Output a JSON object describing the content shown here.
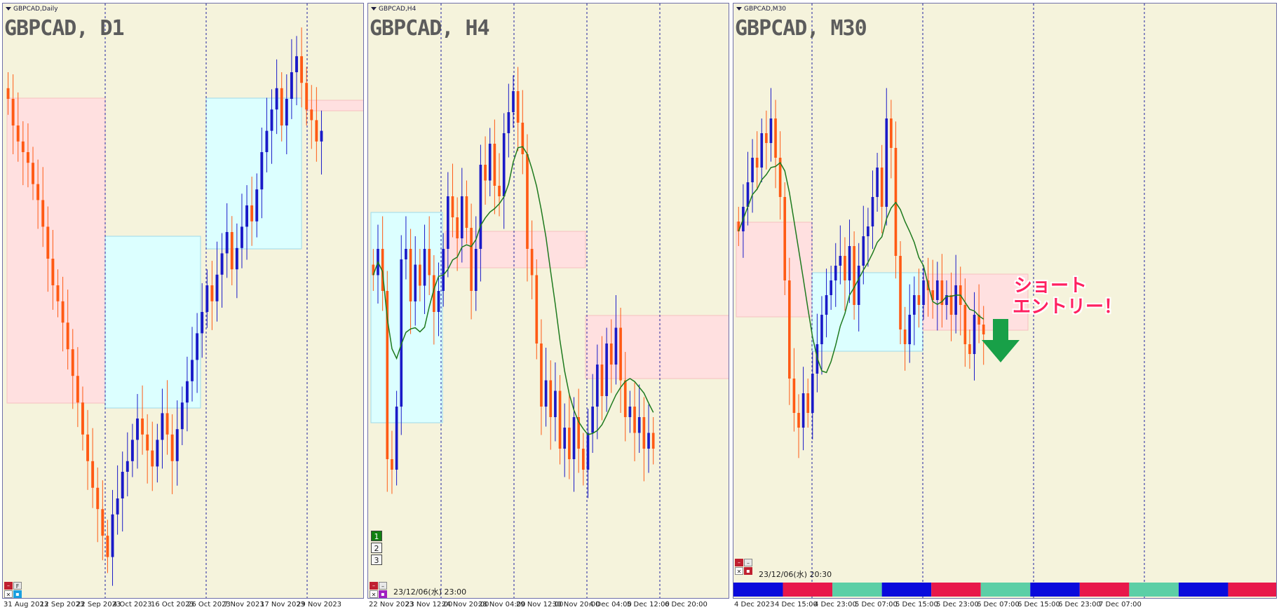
{
  "colors": {
    "bull": "#1a1ac8",
    "bear": "#ff5a14",
    "ma": "#1e7a1e",
    "zone_pink": "#ffe0e0",
    "zone_blue": "#dcffff",
    "bg": "#f5f3dc",
    "separator": "#2020a0",
    "bar_blue": "#0a0adc",
    "bar_red": "#e8184a",
    "bar_teal": "#5ccfa6"
  },
  "icons": [
    "collapse-triangle-icon",
    "close-x-icon",
    "minimize-icon",
    "down-arrow-icon"
  ],
  "panels": [
    {
      "window_label": "GBPCAD,Daily",
      "title": "GBPCAD, D1",
      "dates": [
        "31 Aug 2023",
        "12 Sep 2023",
        "22 Sep 2023",
        "4 Oct 2023",
        "16 Oct 2023",
        "26 Oct 2023",
        "7 Nov 2023",
        "17 Nov 2023",
        "29 Nov 2023"
      ],
      "controls": [
        {
          "symbol": "–",
          "color": "#c02030"
        },
        {
          "symbol": "F",
          "color": "#e8e8e8"
        },
        {
          "symbol": "✕",
          "color": "#ffffff"
        },
        {
          "symbol": "▪",
          "color": "#1aa0e0"
        }
      ]
    },
    {
      "window_label": "GBPCAD,H4",
      "title": "GBPCAD, H4",
      "dates": [
        "22 Nov 2023",
        "23 Nov 12:00",
        "24 Nov 20:00",
        "28 Nov 04:00",
        "29 Nov 12:00",
        "30 Nov 20:00",
        "4 Dec 04:00",
        "5 Dec 12:00",
        "6 Dec 20:00"
      ],
      "timestamp": "23/12/06(水) 23:00",
      "buttons": [
        "1",
        "2",
        "3"
      ],
      "controls": [
        {
          "symbol": "–",
          "color": "#c02030"
        },
        {
          "symbol": "–",
          "color": "#e8e8e8"
        },
        {
          "symbol": "✕",
          "color": "#ffffff"
        },
        {
          "symbol": "▪",
          "color": "#a020c0"
        }
      ]
    },
    {
      "window_label": "GBPCAD,M30",
      "title": "GBPCAD, M30",
      "dates": [
        "4 Dec 2023",
        "4 Dec 15:00",
        "4 Dec 23:00",
        "5 Dec 07:00",
        "5 Dec 15:00",
        "5 Dec 23:00",
        "6 Dec 07:00",
        "6 Dec 15:00",
        "6 Dec 23:00",
        "7 Dec 07:00"
      ],
      "timestamp": "23/12/06(水) 20:30",
      "annotation_line1": "ショート",
      "annotation_line2": "エントリー！",
      "session_colors": [
        "#0a0adc",
        "#e8184a",
        "#5ccfa6",
        "#0a0adc",
        "#e8184a",
        "#5ccfa6",
        "#0a0adc",
        "#e8184a",
        "#5ccfa6",
        "#0a0adc",
        "#e8184a"
      ],
      "controls": [
        {
          "symbol": "–",
          "color": "#c02030"
        },
        {
          "symbol": "–",
          "color": "#e8e8e8"
        },
        {
          "symbol": "✕",
          "color": "#ffffff"
        },
        {
          "symbol": "▪",
          "color": "#c02030"
        }
      ]
    }
  ],
  "chart_data": [
    {
      "type": "candlestick",
      "title": "GBPCAD, D1",
      "x": [
        "31 Aug 2023",
        "12 Sep 2023",
        "22 Sep 2023",
        "4 Oct 2023",
        "16 Oct 2023",
        "26 Oct 2023",
        "7 Nov 2023",
        "17 Nov 2023",
        "29 Nov 2023"
      ],
      "ohlc_closes": [
        0.9,
        0.85,
        0.82,
        0.8,
        0.78,
        0.74,
        0.71,
        0.66,
        0.6,
        0.55,
        0.52,
        0.48,
        0.43,
        0.38,
        0.33,
        0.27,
        0.22,
        0.17,
        0.13,
        0.08,
        0.04,
        0.12,
        0.15,
        0.2,
        0.22,
        0.26,
        0.3,
        0.27,
        0.24,
        0.21,
        0.26,
        0.31,
        0.27,
        0.22,
        0.28,
        0.33,
        0.37,
        0.41,
        0.46,
        0.5,
        0.55,
        0.52,
        0.57,
        0.61,
        0.65,
        0.58,
        0.62,
        0.66,
        0.7,
        0.67,
        0.73,
        0.8,
        0.84,
        0.88,
        0.92,
        0.85,
        0.9,
        0.95,
        0.98,
        0.93,
        0.88,
        0.86,
        0.82,
        0.84
      ],
      "zones": [
        {
          "kind": "supply",
          "from_index": 2,
          "to_index": 21
        },
        {
          "kind": "demand",
          "from_index": 22,
          "to_index": 43
        },
        {
          "kind": "demand",
          "from_index": 44,
          "to_index": 61
        },
        {
          "kind": "supply",
          "from_index": 62,
          "to_index": 71
        }
      ]
    },
    {
      "type": "candlestick",
      "title": "GBPCAD, H4",
      "x": [
        "22 Nov 2023",
        "23 Nov 12:00",
        "24 Nov 20:00",
        "28 Nov 04:00",
        "29 Nov 12:00",
        "30 Nov 20:00",
        "4 Dec 04:00",
        "5 Dec 12:00",
        "6 Dec 20:00"
      ],
      "ohlc_closes": [
        0.55,
        0.6,
        0.52,
        0.2,
        0.18,
        0.3,
        0.58,
        0.6,
        0.5,
        0.57,
        0.53,
        0.6,
        0.55,
        0.48,
        0.52,
        0.6,
        0.7,
        0.66,
        0.62,
        0.7,
        0.64,
        0.52,
        0.6,
        0.76,
        0.73,
        0.8,
        0.72,
        0.7,
        0.82,
        0.86,
        0.9,
        0.84,
        0.78,
        0.6,
        0.55,
        0.42,
        0.3,
        0.35,
        0.28,
        0.33,
        0.22,
        0.26,
        0.2,
        0.28,
        0.22,
        0.18,
        0.25,
        0.3,
        0.38,
        0.32,
        0.42,
        0.38,
        0.45,
        0.35,
        0.28,
        0.3,
        0.25,
        0.28,
        0.22,
        0.25,
        0.22
      ],
      "ma_series": "moving-average",
      "zones": [
        {
          "kind": "demand"
        },
        {
          "kind": "supply"
        },
        {
          "kind": "supply"
        }
      ]
    },
    {
      "type": "candlestick",
      "title": "GBPCAD, M30",
      "x": [
        "4 Dec 2023",
        "4 Dec 15:00",
        "4 Dec 23:00",
        "5 Dec 07:00",
        "5 Dec 15:00",
        "5 Dec 23:00",
        "6 Dec 07:00",
        "6 Dec 15:00",
        "6 Dec 23:00",
        "7 Dec 07:00"
      ],
      "ohlc_closes": [
        0.65,
        0.7,
        0.75,
        0.8,
        0.78,
        0.85,
        0.83,
        0.88,
        0.8,
        0.72,
        0.55,
        0.35,
        0.28,
        0.25,
        0.32,
        0.28,
        0.36,
        0.42,
        0.48,
        0.52,
        0.55,
        0.58,
        0.6,
        0.55,
        0.62,
        0.5,
        0.58,
        0.64,
        0.66,
        0.72,
        0.78,
        0.7,
        0.88,
        0.82,
        0.6,
        0.45,
        0.42,
        0.48,
        0.52,
        0.5,
        0.55,
        0.53,
        0.51,
        0.55,
        0.5,
        0.52,
        0.48,
        0.54,
        0.5,
        0.42,
        0.4,
        0.48,
        0.46,
        0.44
      ],
      "ma_series": "moving-average",
      "zones": [
        {
          "kind": "supply"
        },
        {
          "kind": "demand"
        },
        {
          "kind": "supply"
        }
      ]
    }
  ]
}
